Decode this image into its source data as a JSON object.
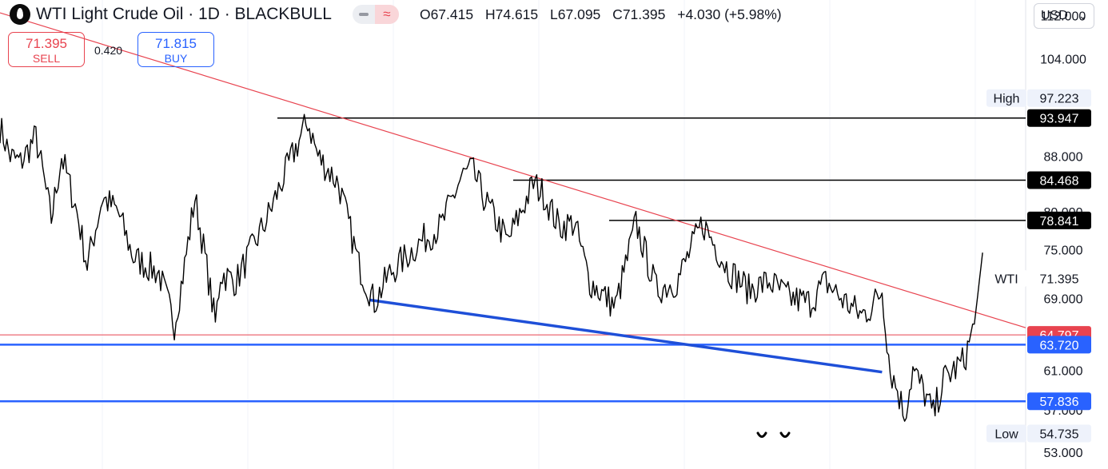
{
  "header": {
    "title": "WTI Light Crude Oil · 1D · BLACKBULL",
    "ohlc": {
      "o_label": "O",
      "o": "67.415",
      "h_label": "H",
      "h": "74.615",
      "l_label": "L",
      "l": "67.095",
      "c_label": "C",
      "c": "71.395",
      "change": "+4.030 (+5.98%)"
    },
    "currency": "USD",
    "icons": {
      "logo": "oil-drop-icon",
      "wave": "approx-icon",
      "chevron": "chevron-down-icon"
    }
  },
  "trade": {
    "sell_price": "71.395",
    "sell_label": "SELL",
    "spread": "0.420",
    "buy_price": "71.815",
    "buy_label": "BUY"
  },
  "colors": {
    "red": "#e8434f",
    "blue": "#2962ff",
    "trend_blue": "#1e4fd8",
    "price": "#000000",
    "black_level": "#000000",
    "grid": "#f0f3fa"
  },
  "chart_data": {
    "type": "line",
    "title": "WTI Light Crude Oil · 1D · BLACKBULL",
    "xlabel": "",
    "ylabel": "",
    "y_scale": "log",
    "ylim": [
      51.5,
      115
    ],
    "y_ticks": [
      53,
      57,
      61,
      69,
      75,
      80,
      88,
      104,
      112
    ],
    "y_tick_labels": [
      "53.000",
      "57.000",
      "61.000",
      "69.000",
      "75.000",
      "80.000",
      "88.000",
      "104.000",
      "112.000"
    ],
    "grid": true,
    "series": [
      {
        "name": "WTI",
        "last_value": 71.395,
        "keypoints": [
          [
            0,
            92.5
          ],
          [
            0.01,
            88
          ],
          [
            0.02,
            87
          ],
          [
            0.035,
            91
          ],
          [
            0.05,
            79
          ],
          [
            0.06,
            88
          ],
          [
            0.075,
            80
          ],
          [
            0.085,
            73
          ],
          [
            0.1,
            82
          ],
          [
            0.115,
            80
          ],
          [
            0.13,
            74
          ],
          [
            0.155,
            72
          ],
          [
            0.17,
            66
          ],
          [
            0.18,
            73
          ],
          [
            0.19,
            82
          ],
          [
            0.2,
            74
          ],
          [
            0.21,
            66
          ],
          [
            0.215,
            72
          ],
          [
            0.23,
            71
          ],
          [
            0.26,
            79
          ],
          [
            0.285,
            88
          ],
          [
            0.3,
            93.5
          ],
          [
            0.31,
            88
          ],
          [
            0.33,
            84
          ],
          [
            0.35,
            73
          ],
          [
            0.365,
            68.5
          ],
          [
            0.38,
            72
          ],
          [
            0.41,
            76
          ],
          [
            0.43,
            78
          ],
          [
            0.45,
            85
          ],
          [
            0.46,
            86
          ],
          [
            0.475,
            81
          ],
          [
            0.495,
            76
          ],
          [
            0.52,
            84
          ],
          [
            0.53,
            82.5
          ],
          [
            0.545,
            78
          ],
          [
            0.56,
            78.5
          ],
          [
            0.575,
            71
          ],
          [
            0.6,
            68
          ],
          [
            0.61,
            73
          ],
          [
            0.62,
            78.5
          ],
          [
            0.64,
            70
          ],
          [
            0.66,
            71
          ],
          [
            0.685,
            78.5
          ],
          [
            0.71,
            72.5
          ],
          [
            0.73,
            70
          ],
          [
            0.75,
            71
          ],
          [
            0.77,
            69
          ],
          [
            0.79,
            68.5
          ],
          [
            0.805,
            71
          ],
          [
            0.82,
            69
          ],
          [
            0.84,
            67
          ],
          [
            0.85,
            68
          ],
          [
            0.86,
            70
          ],
          [
            0.868,
            61
          ],
          [
            0.875,
            59
          ],
          [
            0.882,
            56.5
          ],
          [
            0.89,
            61
          ],
          [
            0.9,
            59
          ],
          [
            0.91,
            56.5
          ],
          [
            0.92,
            60
          ],
          [
            0.93,
            61
          ],
          [
            0.94,
            62
          ],
          [
            0.95,
            66
          ],
          [
            0.958,
            74.6
          ]
        ]
      }
    ],
    "levels": [
      {
        "value": 97.223,
        "label": "High",
        "kind": "high"
      },
      {
        "value": 93.947,
        "kind": "resistance"
      },
      {
        "value": 84.468,
        "kind": "resistance"
      },
      {
        "value": 78.841,
        "kind": "resistance"
      },
      {
        "value": 71.395,
        "label": "WTI",
        "kind": "last-price"
      },
      {
        "value": 64.797,
        "kind": "support-red"
      },
      {
        "value": 63.72,
        "kind": "support-blue"
      },
      {
        "value": 57.836,
        "kind": "support-blue"
      },
      {
        "value": 54.735,
        "label": "Low",
        "kind": "low"
      }
    ],
    "level_labels": [
      "97.223",
      "93.947",
      "84.468",
      "78.841",
      "71.395",
      "64.797",
      "63.720",
      "57.836",
      "54.735"
    ],
    "trendlines": [
      {
        "name": "descending-resistance",
        "from": [
          0,
          112.5
        ],
        "to": [
          1,
          65.6
        ]
      },
      {
        "name": "falling-support",
        "from": [
          0.36,
          68.8
        ],
        "to": [
          0.86,
          60.8
        ]
      }
    ]
  }
}
